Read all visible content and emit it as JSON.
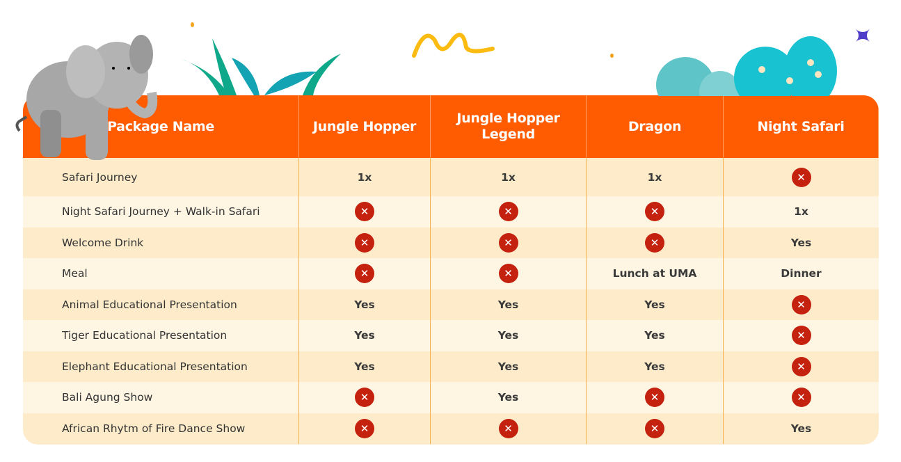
{
  "colors": {
    "header": "#ff5b00",
    "row_odd": "#fdebc9",
    "row_even": "#fef5e3",
    "cross": "#c4210f"
  },
  "header": [
    "Package Name",
    "Jungle Hopper",
    "Jungle Hopper Legend",
    "Dragon",
    "Night Safari"
  ],
  "rows": [
    {
      "label": "Safari Journey",
      "values": [
        "1x",
        "1x",
        "1x",
        "x"
      ]
    },
    {
      "label": "Night Safari Journey + Walk-in Safari",
      "values": [
        "x",
        "x",
        "x",
        "1x"
      ]
    },
    {
      "label": "Welcome Drink",
      "values": [
        "x",
        "x",
        "x",
        "Yes"
      ]
    },
    {
      "label": "Meal",
      "values": [
        "x",
        "x",
        "Lunch at UMA",
        "Dinner"
      ]
    },
    {
      "label": "Animal Educational Presentation",
      "values": [
        "Yes",
        "Yes",
        "Yes",
        "x"
      ]
    },
    {
      "label": "Tiger Educational Presentation",
      "values": [
        "Yes",
        "Yes",
        "Yes",
        "x"
      ]
    },
    {
      "label": "Elephant Educational Presentation",
      "values": [
        "Yes",
        "Yes",
        "Yes",
        "x"
      ]
    },
    {
      "label": "Bali Agung Show",
      "values": [
        "x",
        "Yes",
        "x",
        "x"
      ]
    },
    {
      "label": "African Rhytm of Fire Dance Show",
      "values": [
        "x",
        "x",
        "x",
        "Yes"
      ]
    }
  ],
  "cross_symbol": "✕",
  "icons": {
    "not_included": "cross-circle-icon"
  }
}
